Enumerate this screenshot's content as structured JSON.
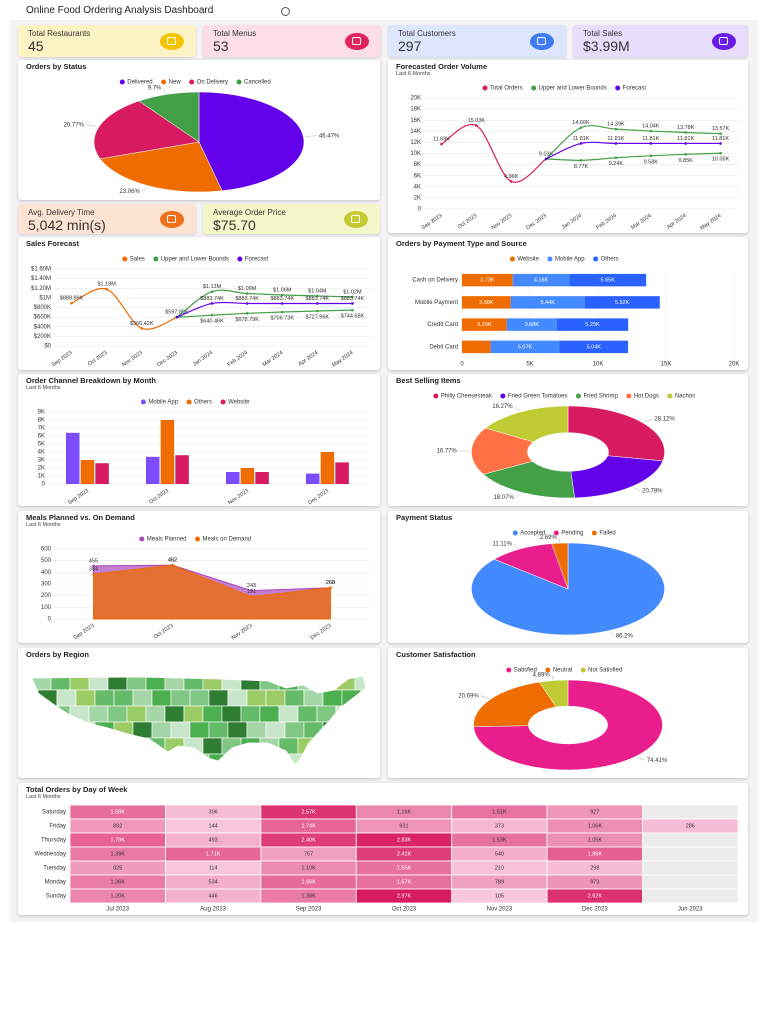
{
  "title": "Online Food Ordering Analysis Dashboard",
  "kpis": [
    {
      "label": "Total Restaurants",
      "value": "45"
    },
    {
      "label": "Total Menus",
      "value": "53"
    },
    {
      "label": "Total Customers",
      "value": "297"
    },
    {
      "label": "Total Sales",
      "value": "$3.99M"
    },
    {
      "label": "Avg. Delivery Time",
      "value": "5,042 min(s)"
    },
    {
      "label": "Average Order Price",
      "value": "$75.70"
    }
  ],
  "chart_data": [
    {
      "type": "pie",
      "title": "Orders by Status",
      "categories": [
        "Delivered",
        "New",
        "On Delivery",
        "Cancelled"
      ],
      "values": [
        46.47,
        23.06,
        20.77,
        9.7
      ],
      "value_labels": [
        "46.47%",
        "23.06%",
        "20.77%",
        "9.7%"
      ],
      "colors": [
        "#6200ea",
        "#ef6c00",
        "#d81b60",
        "#43a047"
      ]
    },
    {
      "type": "line",
      "title": "Forecasted Order Volume",
      "subtitle": "Last 6 Months",
      "categories": [
        "Sep 2023",
        "Oct 2023",
        "Nov 2023",
        "Dec 2023",
        "Jan 2024",
        "Feb 2024",
        "Mar 2024",
        "Apr 2024",
        "May 2024"
      ],
      "series": [
        {
          "name": "Total Orders",
          "color": "#d81b60",
          "values": [
            11690,
            15030,
            4960,
            9030,
            null,
            null,
            null,
            null,
            null
          ],
          "value_labels": [
            "11.69K",
            "15.03K",
            "4.96K",
            "9.03K",
            null,
            null,
            null,
            null,
            null
          ]
        },
        {
          "name": "Upper and Lower Bounds",
          "color": "#43a047",
          "values": [
            null,
            null,
            null,
            9030,
            14660,
            14390,
            14040,
            13780,
            13570
          ],
          "value_labels": [
            null,
            null,
            null,
            null,
            "14.66K",
            "14.39K",
            "14.04K",
            "13.78K",
            "13.57K"
          ],
          "lower": [
            null,
            null,
            null,
            9030,
            8770,
            9240,
            9580,
            9850,
            10050
          ],
          "lower_labels": [
            null,
            null,
            null,
            null,
            "8.77K",
            "9.24K",
            "9.58K",
            "9.85K",
            "10.05K"
          ]
        },
        {
          "name": "Forecast",
          "color": "#6200ea",
          "values": [
            null,
            null,
            null,
            9030,
            11810,
            11810,
            11810,
            11810,
            11810
          ],
          "value_labels": [
            null,
            null,
            null,
            null,
            "11.81K",
            "11.81K",
            "11.81K",
            "11.81K",
            "11.81K"
          ]
        }
      ],
      "ylim": [
        0,
        20000
      ],
      "yticks": [
        0,
        {
          "value": 2000,
          "label": "2K"
        },
        {
          "value": 4000,
          "label": "4K"
        },
        {
          "value": 6000,
          "label": "6K"
        },
        {
          "value": 8000,
          "label": "8K"
        },
        {
          "value": 10000,
          "label": "10K"
        },
        {
          "value": 12000,
          "label": "12K"
        },
        {
          "value": 14000,
          "label": "14K"
        },
        {
          "value": 16000,
          "label": "16K"
        },
        {
          "value": 18000,
          "label": "18K"
        },
        {
          "value": 20000,
          "label": "20K"
        }
      ],
      "grid": true
    },
    {
      "type": "line",
      "title": "Sales Forecast",
      "categories": [
        "Sep 2023",
        "Oct 2023",
        "Nov 2023",
        "Dec 2023",
        "Jan 2024",
        "Feb 2024",
        "Mar 2024",
        "Apr 2024",
        "May 2024"
      ],
      "series": [
        {
          "name": "Sales",
          "color": "#ef6c00",
          "values": [
            888890,
            1180000,
            366420,
            597860,
            null,
            null,
            null,
            null,
            null
          ],
          "value_labels": [
            "$888.89K",
            "$1.18M",
            "$366.42K",
            "$597.86K",
            null,
            null,
            null,
            null,
            null
          ]
        },
        {
          "name": "Upper and Lower Bounds",
          "color": "#43a047",
          "values": [
            null,
            null,
            null,
            597860,
            1130000,
            1090000,
            1060000,
            1040000,
            1020000
          ],
          "value_labels": [
            null,
            null,
            null,
            null,
            "$1.13M",
            "$1.09M",
            "$1.06M",
            "$1.04M",
            "$1.02M"
          ],
          "lower": [
            null,
            null,
            null,
            597860,
            640460,
            678790,
            706730,
            727960,
            744680
          ],
          "lower_labels": [
            null,
            null,
            null,
            null,
            "$640.46K",
            "$678.79K",
            "$706.73K",
            "$727.96K",
            "$744.68K"
          ]
        },
        {
          "name": "Forecast",
          "color": "#6200ea",
          "values": [
            null,
            null,
            null,
            597860,
            883740,
            883740,
            883740,
            883740,
            883740
          ],
          "value_labels": [
            null,
            null,
            null,
            null,
            "$883.74K",
            "$883.74K",
            "$883.74K",
            "$883.74K",
            "$883.74K"
          ]
        }
      ],
      "ylim": [
        0,
        1600000
      ],
      "yticks": [
        {
          "value": 0,
          "label": "$0"
        },
        {
          "value": 200000,
          "label": "$200K"
        },
        {
          "value": 400000,
          "label": "$400K"
        },
        {
          "value": 600000,
          "label": "$600K"
        },
        {
          "value": 800000,
          "label": "$800K"
        },
        {
          "value": 1000000,
          "label": "$1M"
        },
        {
          "value": 1200000,
          "label": "$1.20M"
        },
        {
          "value": 1400000,
          "label": "$1.40M"
        },
        {
          "value": 1600000,
          "label": "$1.60M"
        }
      ],
      "grid": true
    },
    {
      "type": "bar",
      "orientation": "horizontal",
      "stacked": true,
      "title": "Orders by Payment Type and Source",
      "categories": [
        "Cash on Delivery",
        "Mobile Payment",
        "Credit Card",
        "Debit Card"
      ],
      "series": [
        {
          "name": "Website",
          "color": "#ef6c00",
          "values": [
            3730,
            3580,
            3290,
            2100
          ],
          "value_labels": [
            "3.73K",
            "3.58K",
            "3.29K",
            null
          ]
        },
        {
          "name": "Mobile App",
          "color": "#448aff",
          "values": [
            4160,
            5440,
            3680,
            5070
          ],
          "value_labels": [
            "4.16K",
            "5.44K",
            "3.68K",
            "5.07K"
          ]
        },
        {
          "name": "Others",
          "color": "#2962ff",
          "values": [
            5650,
            5520,
            5250,
            5040
          ],
          "value_labels": [
            "5.65K",
            "5.52K",
            "5.25K",
            "5.04K"
          ]
        }
      ],
      "xlim": [
        0,
        20000
      ],
      "xticks": [
        0,
        {
          "value": 5000,
          "label": "5K"
        },
        {
          "value": 10000,
          "label": "10K"
        },
        {
          "value": 15000,
          "label": "15K"
        },
        {
          "value": 20000,
          "label": "20K"
        }
      ],
      "grid": true
    },
    {
      "type": "bar",
      "title": "Order Channel Breakdown by Month",
      "subtitle": "Last 6 Months",
      "categories": [
        "Sep 2023",
        "Oct 2023",
        "Nov 2023",
        "Dec 2023"
      ],
      "series": [
        {
          "name": "Mobile App",
          "color": "#7c4dff",
          "values": [
            6400,
            3400,
            1500,
            1300
          ]
        },
        {
          "name": "Others",
          "color": "#ef6c00",
          "values": [
            3000,
            8000,
            2000,
            4000
          ]
        },
        {
          "name": "Website",
          "color": "#d81b60",
          "values": [
            2600,
            3600,
            1500,
            2700
          ]
        }
      ],
      "ylim": [
        0,
        9000
      ],
      "yticks": [
        0,
        {
          "value": 1000,
          "label": "1K"
        },
        {
          "value": 2000,
          "label": "2K"
        },
        {
          "value": 3000,
          "label": "3K"
        },
        {
          "value": 4000,
          "label": "4K"
        },
        {
          "value": 5000,
          "label": "5K"
        },
        {
          "value": 6000,
          "label": "6K"
        },
        {
          "value": 7000,
          "label": "7K"
        },
        {
          "value": 8000,
          "label": "8K"
        },
        {
          "value": 9000,
          "label": "9K"
        }
      ],
      "grid": true
    },
    {
      "type": "donut",
      "title": "Best Selling Items",
      "categories": [
        "Philly Cheesesteak",
        "Fried Green Tomatoes",
        "Fried Shrimp",
        "Hot Dogs",
        "Nachos"
      ],
      "values": [
        28.12,
        20.78,
        18.07,
        16.77,
        16.27
      ],
      "value_labels": [
        "28.12%",
        "20.78%",
        "18.07%",
        "16.77%",
        "16.27%"
      ],
      "colors": [
        "#d81b60",
        "#6200ea",
        "#43a047",
        "#ff7043",
        "#c0ca33"
      ]
    },
    {
      "type": "area",
      "title": "Meals Planned vs. On Demand",
      "subtitle": "Last 6 Months",
      "categories": [
        "Sep 2023",
        "Oct 2023",
        "Nov 2023",
        "Dec 2023"
      ],
      "series": [
        {
          "name": "Meals Planned",
          "color": "#ab47bc",
          "values": [
            455,
            462,
            243,
            268
          ]
        },
        {
          "name": "Meals on Demand",
          "color": "#ef6c00",
          "values": [
            384,
            462,
            191,
            268
          ]
        }
      ],
      "ylim": [
        0,
        600
      ],
      "yticks": [
        0,
        100,
        200,
        300,
        400,
        500,
        600
      ],
      "grid": true
    },
    {
      "type": "pie",
      "title": "Payment Status",
      "categories": [
        "Accepted",
        "Pending",
        "Failed"
      ],
      "values": [
        86.2,
        11.11,
        2.69
      ],
      "value_labels": [
        "86.2%",
        "11.11%",
        "2.69%"
      ],
      "colors": [
        "#448aff",
        "#e91e8c",
        "#ef6c00"
      ]
    },
    {
      "type": "map",
      "title": "Orders by Region"
    },
    {
      "type": "donut",
      "title": "Customer Satisfaction",
      "categories": [
        "Satisfied",
        "Neutral",
        "Not Satisfied"
      ],
      "values": [
        74.41,
        20.69,
        4.89
      ],
      "value_labels": [
        "74.41%",
        "20.69%",
        "4.89%"
      ],
      "colors": [
        "#e91e8c",
        "#ef6c00",
        "#c0ca33"
      ]
    },
    {
      "type": "heatmap",
      "title": "Total Orders by Day of Week",
      "subtitle": "Last 6 Months",
      "x": [
        "Jul 2023",
        "Aug 2023",
        "Sep 2023",
        "Oct 2023",
        "Nov 2023",
        "Dec 2023",
        "Jun 2023"
      ],
      "y": [
        "Saturday",
        "Friday",
        "Thursday",
        "Wednesday",
        "Tuesday",
        "Monday",
        "Sunday"
      ],
      "values": [
        [
          1590,
          306,
          2570,
          1160,
          1510,
          927,
          null
        ],
        [
          892,
          144,
          1740,
          931,
          373,
          1060,
          286
        ],
        [
          1790,
          493,
          2400,
          2830,
          1530,
          1050,
          null
        ],
        [
          1390,
          1710,
          757,
          2410,
          540,
          1860,
          null
        ],
        [
          825,
          114,
          1100,
          1550,
          210,
          298,
          null
        ],
        [
          1360,
          534,
          1660,
          1570,
          789,
          973,
          null
        ],
        [
          1200,
          446,
          1380,
          2970,
          105,
          2620,
          null
        ]
      ],
      "value_labels": [
        [
          "1.59K",
          "306",
          "2.57K",
          "1.16K",
          "1.51K",
          "927",
          null
        ],
        [
          "892",
          "144",
          "1.74K",
          "931",
          "373",
          "1.06K",
          "286"
        ],
        [
          "1.79K",
          "493",
          "2.40K",
          "2.83K",
          "1.53K",
          "1.05K",
          null
        ],
        [
          "1.39K",
          "1.71K",
          "757",
          "2.41K",
          "540",
          "1.86K",
          null
        ],
        [
          "825",
          "114",
          "1.10K",
          "1.55K",
          "210",
          "298",
          null
        ],
        [
          "1.36K",
          "534",
          "1.66K",
          "1.57K",
          "789",
          "973",
          null
        ],
        [
          "1.20K",
          "446",
          "1.38K",
          "2.97K",
          "105",
          "2.62K",
          null
        ]
      ]
    }
  ]
}
